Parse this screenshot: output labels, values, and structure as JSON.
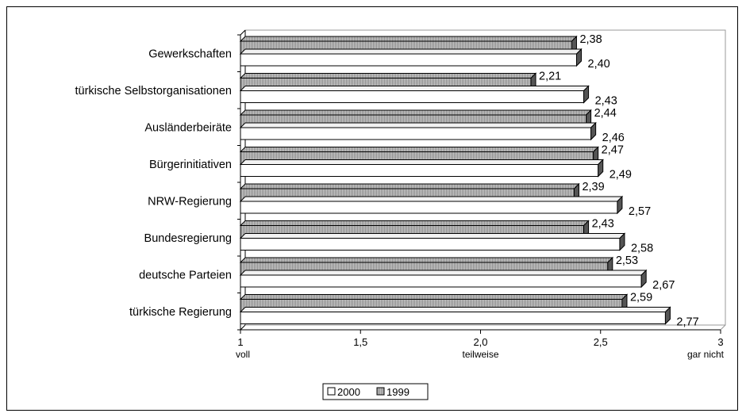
{
  "chart_data": {
    "type": "bar",
    "orientation": "horizontal",
    "categories": [
      "Gewerkschaften",
      "türkische Selbstorganisationen",
      "Ausländerbeiräte",
      "Bürgerinitiativen",
      "NRW-Regierung",
      "Bundesregierung",
      "deutsche Parteien",
      "türkische Regierung"
    ],
    "series": [
      {
        "name": "1999",
        "color": "#b4b4b4",
        "values": [
          2.38,
          2.21,
          2.44,
          2.47,
          2.39,
          2.43,
          2.53,
          2.59
        ],
        "labels": [
          "2,38",
          "2,21",
          "2,44",
          "2,47",
          "2,39",
          "2,43",
          "2,53",
          "2,59"
        ]
      },
      {
        "name": "2000",
        "color": "#ffffff",
        "values": [
          2.4,
          2.43,
          2.46,
          2.49,
          2.57,
          2.58,
          2.67,
          2.77
        ],
        "labels": [
          "2,40",
          "2,43",
          "2,46",
          "2,49",
          "2,57",
          "2,58",
          "2,67",
          "2,77"
        ]
      }
    ],
    "xlim": [
      1,
      3
    ],
    "xticks": [
      {
        "value": 1,
        "label": "1",
        "sublabel": "voll"
      },
      {
        "value": 1.5,
        "label": "1,5",
        "sublabel": ""
      },
      {
        "value": 2,
        "label": "2,0",
        "sublabel": "teilweise"
      },
      {
        "value": 2.5,
        "label": "2,5",
        "sublabel": ""
      },
      {
        "value": 3,
        "label": "3",
        "sublabel": "gar nicht"
      }
    ],
    "legend": {
      "position": "bottom",
      "order": [
        "2000",
        "1999"
      ]
    },
    "grid": false
  }
}
